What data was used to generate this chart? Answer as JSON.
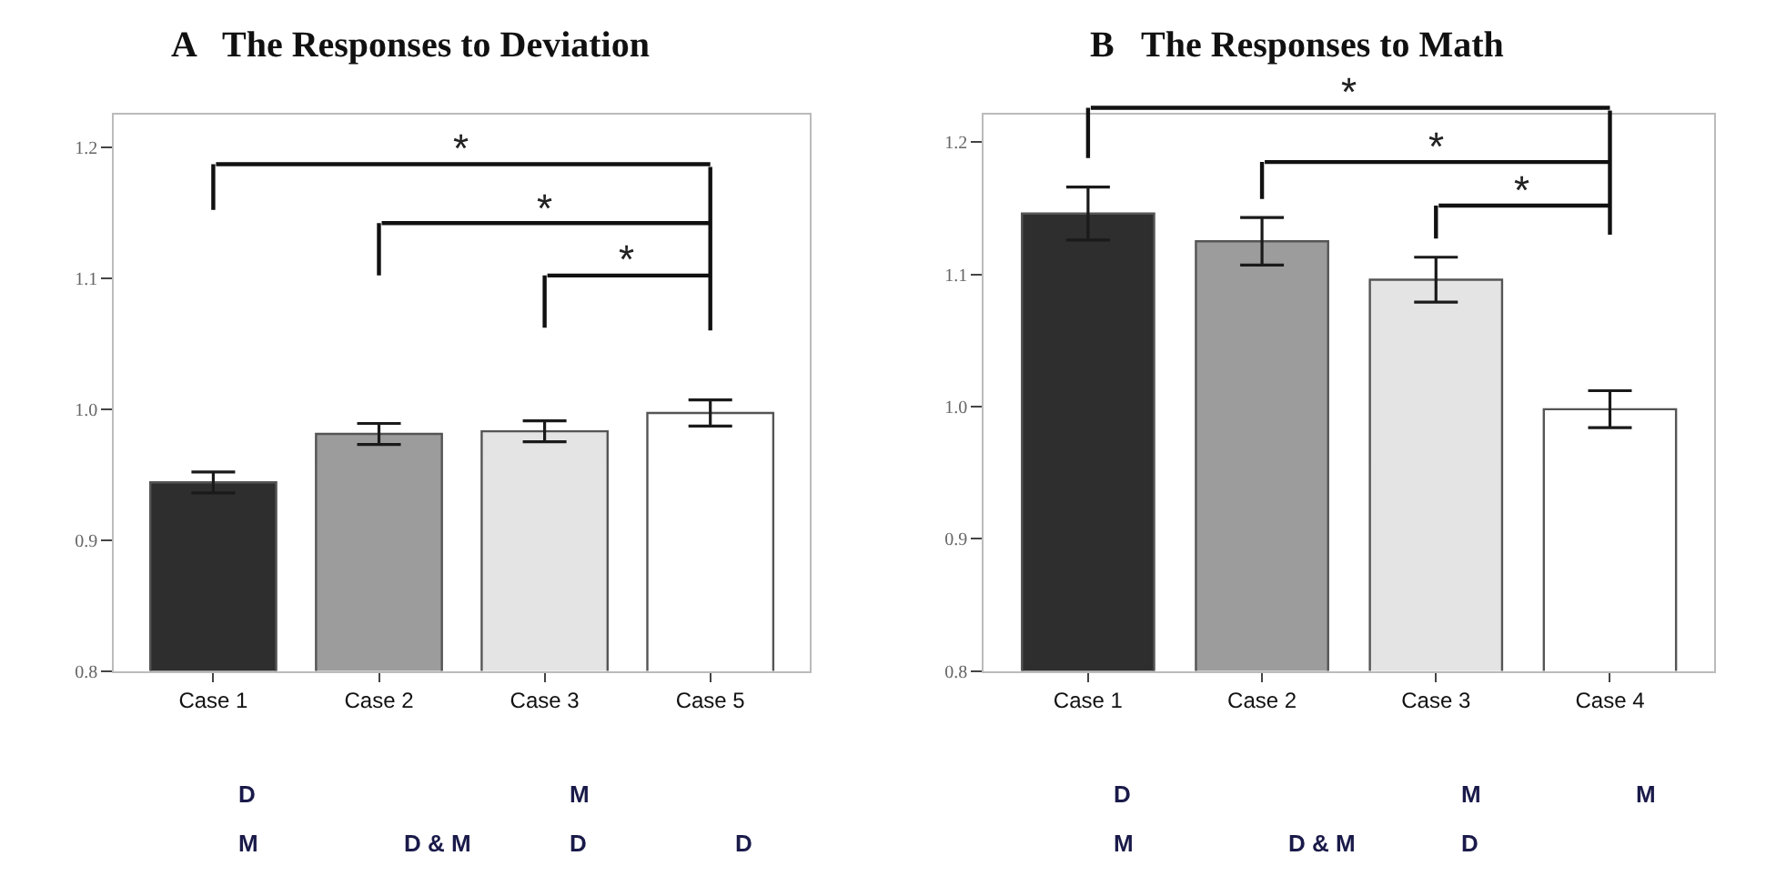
{
  "chart_data": [
    {
      "type": "bar",
      "title": "A   The Responses to Deviation",
      "categories": [
        "Case 1",
        "Case 2",
        "Case 3",
        "Case 5"
      ],
      "values": [
        0.944,
        0.981,
        0.983,
        0.997
      ],
      "errors": [
        0.008,
        0.008,
        0.008,
        0.01
      ],
      "colors": [
        "#2e2e2e",
        "#9c9c9c",
        "#e4e4e4",
        "#ffffff"
      ],
      "ylim": [
        0.8,
        1.225
      ],
      "yticks": [
        0.8,
        0.9,
        {
          "value": 1.0,
          "label": "1.0"
        },
        1.1,
        1.2
      ],
      "annotations": [
        "*",
        "*",
        "*",
        "D",
        "M",
        "D & M",
        "M",
        "D",
        "D"
      ]
    },
    {
      "type": "bar",
      "title": "B   The Responses to Math",
      "categories": [
        "Case 1",
        "Case 2",
        "Case 3",
        "Case 4"
      ],
      "values": [
        1.146,
        1.125,
        1.096,
        0.998
      ],
      "errors": [
        0.02,
        0.018,
        0.017,
        0.014
      ],
      "colors": [
        "#2e2e2e",
        "#9c9c9c",
        "#e4e4e4",
        "#ffffff"
      ],
      "ylim": [
        0.8,
        1.221
      ],
      "yticks": [
        0.8,
        0.9,
        {
          "value": 1.0,
          "label": "1.0"
        },
        1.1,
        1.2
      ],
      "annotations": [
        "*",
        "*",
        "*",
        "D",
        "M",
        "D & M",
        "M",
        "D",
        "M"
      ]
    }
  ]
}
